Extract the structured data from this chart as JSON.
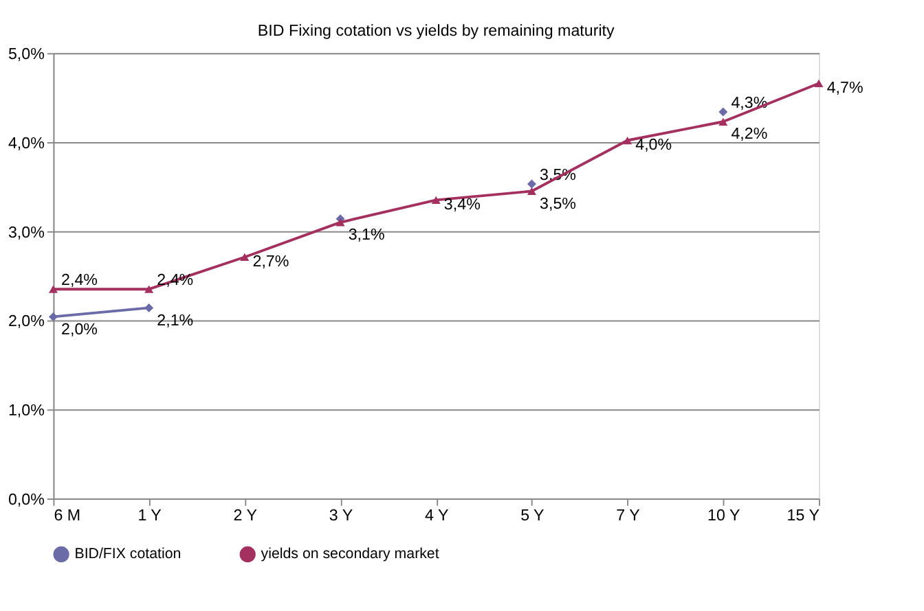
{
  "chart_data": {
    "type": "line",
    "title": "BID Fixing cotation vs yields by remaining maturity",
    "categories": [
      "6 M",
      "1 Y",
      "2 Y",
      "3 Y",
      "4 Y",
      "5 Y",
      "7 Y",
      "10 Y",
      "15 Y"
    ],
    "series": [
      {
        "name": "BID/FIX cotation",
        "color": "#6b6ba8",
        "marker": "diamond",
        "values": [
          2.04,
          2.14,
          null,
          3.14,
          null,
          3.53,
          null,
          4.34,
          null
        ],
        "value_labels": [
          "2,0%",
          "2,1%",
          null,
          null,
          null,
          "3,5%",
          null,
          "4,3%",
          null
        ]
      },
      {
        "name": "yields on secondary market",
        "color": "#a3305f",
        "marker": "triangle",
        "values": [
          2.35,
          2.35,
          2.71,
          3.1,
          3.35,
          3.45,
          4.02,
          4.23,
          4.66
        ],
        "value_labels": [
          "2,4%",
          "2,4%",
          "2,7%",
          "3,1%",
          "3,4%",
          "3,5%",
          "4,0%",
          "4,2%",
          "4,7%"
        ]
      }
    ],
    "ylim": [
      0,
      5
    ],
    "yticks": [
      {
        "value": 0,
        "label": "0,0%"
      },
      {
        "value": 1,
        "label": "1,0%"
      },
      {
        "value": 2,
        "label": "2,0%"
      },
      {
        "value": 3,
        "label": "3,0%"
      },
      {
        "value": 4,
        "label": "4,0%"
      },
      {
        "value": 5,
        "label": "5,0%"
      }
    ],
    "grid": "y",
    "legend": "bottom"
  }
}
